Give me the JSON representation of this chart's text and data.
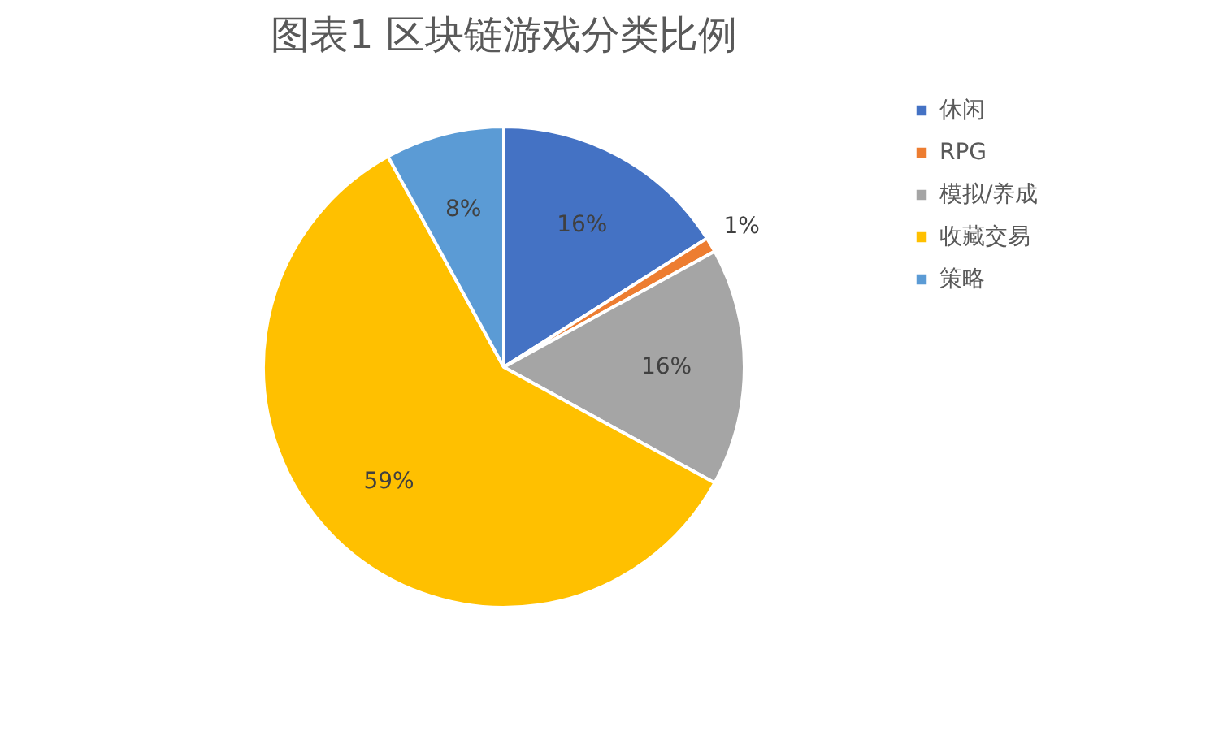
{
  "chart_data": {
    "type": "pie",
    "title": "图表1 区块链游戏分类比例",
    "categories": [
      "休闲",
      "RPG",
      "模拟/养成",
      "收藏交易",
      "策略"
    ],
    "values": [
      16,
      1,
      16,
      59,
      8
    ],
    "colors": [
      "#4472c4",
      "#ed7d31",
      "#a5a5a5",
      "#ffc000",
      "#5b9bd5"
    ],
    "value_labels": [
      "16%",
      "1%",
      "16%",
      "59%",
      "8%"
    ],
    "legend": "right"
  }
}
